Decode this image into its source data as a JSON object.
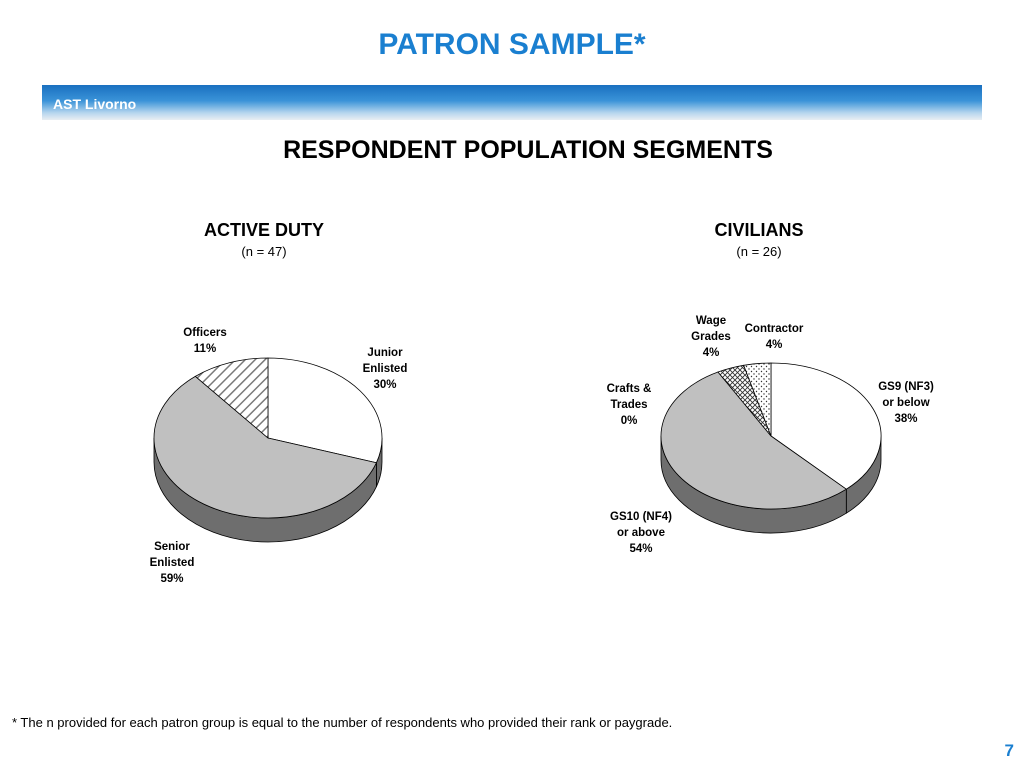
{
  "slide": {
    "title": "PATRON SAMPLE*",
    "banner_label": "AST Livorno",
    "section_title": "RESPONDENT POPULATION SEGMENTS",
    "footnote": "*  The n provided for each patron group is equal to the number of respondents who provided their rank or paygrade.",
    "page_number": "7"
  },
  "colors": {
    "title_blue": "#1a7fd0",
    "slice_white": "#ffffff",
    "slice_gray": "#c0c0c0",
    "side_dark": "#6e6e6e",
    "outline": "#000000"
  },
  "chart_data": [
    {
      "type": "pie",
      "style": "3d",
      "title": "ACTIVE DUTY",
      "subtitle": "(n = 47)",
      "slices": [
        {
          "label_lines": [
            "Junior",
            "Enlisted",
            "30%"
          ],
          "value": 30,
          "fill": "white"
        },
        {
          "label_lines": [
            "Senior",
            "Enlisted",
            "59%"
          ],
          "value": 59,
          "fill": "gray"
        },
        {
          "label_lines": [
            "Officers",
            "11%"
          ],
          "value": 11,
          "fill": "diagonal-hatch"
        }
      ]
    },
    {
      "type": "pie",
      "style": "3d",
      "title": "CIVILIANS",
      "subtitle": "(n = 26)",
      "slices": [
        {
          "label_lines": [
            "GS9 (NF3)",
            "or below",
            "38%"
          ],
          "value": 38,
          "fill": "white"
        },
        {
          "label_lines": [
            "GS10 (NF4)",
            "or above",
            "54%"
          ],
          "value": 54,
          "fill": "gray"
        },
        {
          "label_lines": [
            "Crafts &",
            "Trades",
            "0%"
          ],
          "value": 0,
          "fill": "white"
        },
        {
          "label_lines": [
            "Wage",
            "Grades",
            "4%"
          ],
          "value": 4,
          "fill": "crosshatch"
        },
        {
          "label_lines": [
            "Contractor",
            "4%"
          ],
          "value": 4,
          "fill": "dots"
        }
      ]
    }
  ]
}
